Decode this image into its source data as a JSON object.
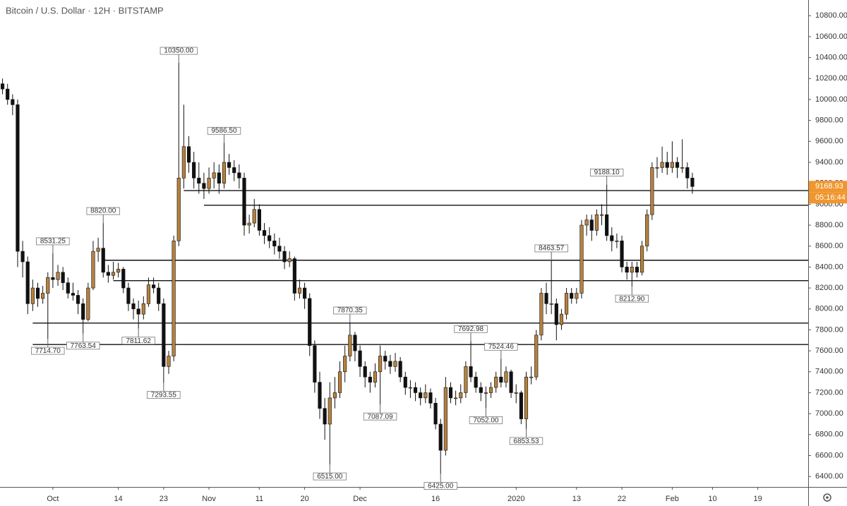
{
  "chart_data": {
    "type": "candlestick",
    "title": "Bitcoin / U.S. Dollar · 12H · BITSTAMP",
    "up_color": "#b5813f",
    "down_color": "#111111",
    "ylim": [
      6300,
      10950
    ],
    "yticks": [
      {
        "value": 6400,
        "label": "6400.00"
      },
      {
        "value": 6600,
        "label": "6600.00"
      },
      {
        "value": 6800,
        "label": "6800.00"
      },
      {
        "value": 7000,
        "label": "7000.00"
      },
      {
        "value": 7200,
        "label": "7200.00"
      },
      {
        "value": 7400,
        "label": "7400.00"
      },
      {
        "value": 7600,
        "label": "7600.00"
      },
      {
        "value": 7800,
        "label": "7800.00"
      },
      {
        "value": 8000,
        "label": "8000.00"
      },
      {
        "value": 8200,
        "label": "8200.00"
      },
      {
        "value": 8400,
        "label": "8400.00"
      },
      {
        "value": 8600,
        "label": "8600.00"
      },
      {
        "value": 8800,
        "label": "8800.00"
      },
      {
        "value": 9000,
        "label": "9000.00"
      },
      {
        "value": 9200,
        "label": "9200.00"
      },
      {
        "value": 9400,
        "label": "9400.00"
      },
      {
        "value": 9600,
        "label": "9600.00"
      },
      {
        "value": 9800,
        "label": "9800.00"
      },
      {
        "value": 10000,
        "label": "10000.00"
      },
      {
        "value": 10200,
        "label": "10200.00"
      },
      {
        "value": 10400,
        "label": "10400.00"
      },
      {
        "value": 10600,
        "label": "10600.00"
      },
      {
        "value": 10800,
        "label": "10800.00"
      }
    ],
    "xlim": [
      0.5,
      161
    ],
    "xticks": [
      {
        "value": 11,
        "label": "Oct"
      },
      {
        "value": 24,
        "label": "14"
      },
      {
        "value": 33,
        "label": "23"
      },
      {
        "value": 42,
        "label": "Nov"
      },
      {
        "value": 52,
        "label": "11"
      },
      {
        "value": 61,
        "label": "20"
      },
      {
        "value": 72,
        "label": "Dec"
      },
      {
        "value": 87,
        "label": "16"
      },
      {
        "value": 103,
        "label": "2020"
      },
      {
        "value": 115,
        "label": "13"
      },
      {
        "value": 124,
        "label": "22"
      },
      {
        "value": 134,
        "label": "Feb"
      },
      {
        "value": 142,
        "label": "10"
      },
      {
        "value": 151,
        "label": "19"
      }
    ],
    "countdown": "05:16:44",
    "levels": [
      {
        "value": 9130,
        "start": 37
      },
      {
        "value": 8990,
        "start": 41
      },
      {
        "value": 8465,
        "start": 21
      },
      {
        "value": 8270,
        "start": 23
      },
      {
        "value": 7865,
        "start": 7
      },
      {
        "value": 7660,
        "start": 7
      }
    ],
    "annotations": [
      {
        "index": 11,
        "value": 8531.25,
        "label": "8531.25",
        "side": "high"
      },
      {
        "index": 10,
        "value": 7714.7,
        "label": "7714.70",
        "side": "low"
      },
      {
        "index": 21,
        "value": 8820,
        "label": "8820.00",
        "side": "high"
      },
      {
        "index": 17,
        "value": 7763.54,
        "label": "7763.54",
        "side": "low"
      },
      {
        "index": 28,
        "value": 7811.62,
        "label": "7811.62",
        "side": "low"
      },
      {
        "index": 33,
        "value": 7293.55,
        "label": "7293.55",
        "side": "low"
      },
      {
        "index": 36,
        "value": 10350,
        "label": "10350.00",
        "side": "high"
      },
      {
        "index": 45,
        "value": 9586.5,
        "label": "9586.50",
        "side": "high"
      },
      {
        "index": 66,
        "value": 6515,
        "label": "6515.00",
        "side": "low"
      },
      {
        "index": 70,
        "value": 7870.35,
        "label": "7870.35",
        "side": "high"
      },
      {
        "index": 76,
        "value": 7087.09,
        "label": "7087.09",
        "side": "low"
      },
      {
        "index": 88,
        "value": 6425,
        "label": "6425.00",
        "side": "low"
      },
      {
        "index": 94,
        "value": 7692.98,
        "label": "7692.98",
        "side": "high"
      },
      {
        "index": 97,
        "value": 7052,
        "label": "7052.00",
        "side": "low"
      },
      {
        "index": 100,
        "value": 7524.46,
        "label": "7524.46",
        "side": "high"
      },
      {
        "index": 105,
        "value": 6853.53,
        "label": "6853.53",
        "side": "low"
      },
      {
        "index": 110,
        "value": 8463.57,
        "label": "8463.57",
        "side": "high"
      },
      {
        "index": 121,
        "value": 9188.1,
        "label": "9188.10",
        "side": "high"
      },
      {
        "index": 126,
        "value": 8212.9,
        "label": "8212.90",
        "side": "low"
      }
    ],
    "ohlc": [
      [
        10250,
        10300,
        10100,
        10150
      ],
      [
        10150,
        10200,
        10050,
        10100
      ],
      [
        10100,
        10150,
        9950,
        10000
      ],
      [
        10000,
        10050,
        9850,
        9950
      ],
      [
        9950,
        10000,
        8400,
        8550
      ],
      [
        8550,
        8650,
        8300,
        8450
      ],
      [
        8450,
        8500,
        7950,
        8050
      ],
      [
        8050,
        8280,
        7980,
        8200
      ],
      [
        8200,
        8250,
        8020,
        8100
      ],
      [
        8100,
        8220,
        8050,
        8150
      ],
      [
        8150,
        8350,
        7714.7,
        8300
      ],
      [
        8300,
        8531.25,
        8200,
        8280
      ],
      [
        8280,
        8420,
        8220,
        8350
      ],
      [
        8350,
        8400,
        8180,
        8250
      ],
      [
        8250,
        8300,
        8100,
        8150
      ],
      [
        8150,
        8250,
        8080,
        8130
      ],
      [
        8130,
        8180,
        7950,
        8050
      ],
      [
        8050,
        8100,
        7763.54,
        7900
      ],
      [
        7900,
        8250,
        7880,
        8200
      ],
      [
        8200,
        8650,
        8180,
        8550
      ],
      [
        8550,
        8680,
        8450,
        8580
      ],
      [
        8580,
        8820,
        8300,
        8350
      ],
      [
        8350,
        8420,
        8250,
        8320
      ],
      [
        8320,
        8450,
        8280,
        8350
      ],
      [
        8350,
        8440,
        8300,
        8380
      ],
      [
        8380,
        8400,
        8150,
        8200
      ],
      [
        8200,
        8250,
        7980,
        8050
      ],
      [
        8050,
        8100,
        7900,
        8000
      ],
      [
        8000,
        8080,
        7811.62,
        7950
      ],
      [
        7950,
        8120,
        7900,
        8050
      ],
      [
        8050,
        8300,
        8020,
        8230
      ],
      [
        8230,
        8300,
        8150,
        8200
      ],
      [
        8200,
        8250,
        7980,
        8050
      ],
      [
        8050,
        8100,
        7293.55,
        7450
      ],
      [
        7450,
        7600,
        7380,
        7550
      ],
      [
        7550,
        8700,
        7500,
        8650
      ],
      [
        8650,
        10350,
        8600,
        9250
      ],
      [
        9250,
        9950,
        9150,
        9550
      ],
      [
        9550,
        9650,
        9300,
        9400
      ],
      [
        9400,
        9500,
        9150,
        9250
      ],
      [
        9250,
        9400,
        9100,
        9200
      ],
      [
        9200,
        9300,
        9050,
        9150
      ],
      [
        9150,
        9350,
        9100,
        9250
      ],
      [
        9250,
        9400,
        9150,
        9300
      ],
      [
        9300,
        9380,
        9100,
        9200
      ],
      [
        9200,
        9586.5,
        9150,
        9400
      ],
      [
        9400,
        9480,
        9280,
        9350
      ],
      [
        9350,
        9420,
        9220,
        9300
      ],
      [
        9300,
        9380,
        9150,
        9250
      ],
      [
        9250,
        9300,
        8700,
        8800
      ],
      [
        8800,
        8900,
        8720,
        8820
      ],
      [
        8820,
        9050,
        8780,
        8950
      ],
      [
        8950,
        9000,
        8700,
        8750
      ],
      [
        8750,
        8820,
        8620,
        8700
      ],
      [
        8700,
        8780,
        8580,
        8650
      ],
      [
        8650,
        8720,
        8520,
        8600
      ],
      [
        8600,
        8680,
        8480,
        8550
      ],
      [
        8550,
        8600,
        8380,
        8450
      ],
      [
        8450,
        8550,
        8400,
        8480
      ],
      [
        8480,
        8500,
        8080,
        8150
      ],
      [
        8150,
        8280,
        8100,
        8200
      ],
      [
        8200,
        8250,
        8000,
        8100
      ],
      [
        8100,
        8150,
        7550,
        7650
      ],
      [
        7650,
        7700,
        7200,
        7300
      ],
      [
        7300,
        7400,
        6950,
        7050
      ],
      [
        7050,
        7150,
        6750,
        6900
      ],
      [
        6900,
        7300,
        6515,
        7150
      ],
      [
        7150,
        7350,
        7050,
        7200
      ],
      [
        7200,
        7500,
        7150,
        7400
      ],
      [
        7400,
        7650,
        7300,
        7550
      ],
      [
        7550,
        7870.35,
        7500,
        7750
      ],
      [
        7750,
        7780,
        7500,
        7600
      ],
      [
        7600,
        7650,
        7350,
        7450
      ],
      [
        7450,
        7500,
        7250,
        7350
      ],
      [
        7350,
        7400,
        7200,
        7300
      ],
      [
        7300,
        7480,
        7250,
        7400
      ],
      [
        7400,
        7650,
        7087.09,
        7550
      ],
      [
        7550,
        7600,
        7420,
        7500
      ],
      [
        7500,
        7560,
        7380,
        7450
      ],
      [
        7450,
        7580,
        7400,
        7500
      ],
      [
        7500,
        7540,
        7300,
        7350
      ],
      [
        7350,
        7400,
        7180,
        7250
      ],
      [
        7250,
        7320,
        7150,
        7250
      ],
      [
        7250,
        7300,
        7120,
        7200
      ],
      [
        7200,
        7250,
        7080,
        7150
      ],
      [
        7150,
        7280,
        7100,
        7200
      ],
      [
        7200,
        7240,
        7050,
        7100
      ],
      [
        7100,
        7150,
        6850,
        6900
      ],
      [
        6900,
        6950,
        6425,
        6650
      ],
      [
        6650,
        7350,
        6600,
        7250
      ],
      [
        7250,
        7300,
        7100,
        7150
      ],
      [
        7150,
        7220,
        7080,
        7150
      ],
      [
        7150,
        7280,
        7100,
        7200
      ],
      [
        7200,
        7500,
        7150,
        7450
      ],
      [
        7450,
        7692.98,
        7300,
        7350
      ],
      [
        7350,
        7400,
        7200,
        7250
      ],
      [
        7250,
        7300,
        7120,
        7200
      ],
      [
        7200,
        7260,
        7052,
        7200
      ],
      [
        7200,
        7300,
        7150,
        7250
      ],
      [
        7250,
        7400,
        7200,
        7350
      ],
      [
        7350,
        7524.46,
        7250,
        7300
      ],
      [
        7300,
        7450,
        7250,
        7400
      ],
      [
        7400,
        7420,
        7150,
        7200
      ],
      [
        7200,
        7280,
        7100,
        7200
      ],
      [
        7200,
        7220,
        6900,
        6950
      ],
      [
        6950,
        7400,
        6853.53,
        7350
      ],
      [
        7350,
        7450,
        7280,
        7350
      ],
      [
        7350,
        7800,
        7320,
        7750
      ],
      [
        7750,
        8200,
        7700,
        8150
      ],
      [
        8150,
        8250,
        7950,
        8050
      ],
      [
        8050,
        8463.57,
        7950,
        8050
      ],
      [
        8050,
        8100,
        7700,
        7850
      ],
      [
        7850,
        8000,
        7800,
        7950
      ],
      [
        7950,
        8200,
        7900,
        8150
      ],
      [
        8150,
        8200,
        8050,
        8100
      ],
      [
        8100,
        8200,
        8050,
        8150
      ],
      [
        8150,
        8850,
        8100,
        8800
      ],
      [
        8800,
        8900,
        8700,
        8850
      ],
      [
        8850,
        8900,
        8650,
        8750
      ],
      [
        8750,
        8950,
        8700,
        8900
      ],
      [
        8900,
        9000,
        8800,
        8900
      ],
      [
        8900,
        9188.1,
        8650,
        8700
      ],
      [
        8700,
        8780,
        8550,
        8650
      ],
      [
        8650,
        8720,
        8580,
        8650
      ],
      [
        8650,
        8700,
        8350,
        8400
      ],
      [
        8400,
        8450,
        8280,
        8350
      ],
      [
        8350,
        8450,
        8212.9,
        8400
      ],
      [
        8400,
        8450,
        8300,
        8350
      ],
      [
        8350,
        8650,
        8320,
        8600
      ],
      [
        8600,
        8950,
        8550,
        8900
      ],
      [
        8900,
        9400,
        8850,
        9350
      ],
      [
        9350,
        9450,
        9250,
        9350
      ],
      [
        9350,
        9550,
        9300,
        9400
      ],
      [
        9400,
        9500,
        9280,
        9350
      ],
      [
        9350,
        9600,
        9300,
        9400
      ],
      [
        9400,
        9450,
        9250,
        9350
      ],
      [
        9350,
        9620,
        9300,
        9350
      ],
      [
        9350,
        9400,
        9150,
        9250
      ],
      [
        9250,
        9300,
        9100,
        9168.93
      ]
    ]
  }
}
